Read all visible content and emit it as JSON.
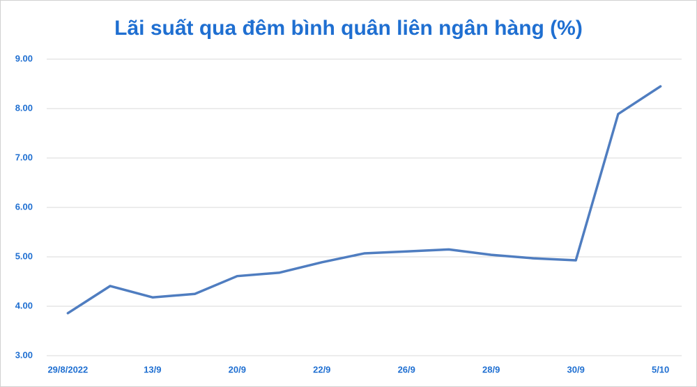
{
  "chart_data": {
    "type": "line",
    "title": "Lãi suất qua đêm bình quân liên ngân hàng (%)",
    "categories": [
      "29/8/2022",
      null,
      "13/9",
      null,
      "20/9",
      null,
      "22/9",
      null,
      "26/9",
      null,
      "28/9",
      null,
      "30/9",
      null,
      "5/10"
    ],
    "series": [
      {
        "name": "Lãi suất",
        "color": "#4f7dc0",
        "values": [
          3.86,
          4.41,
          4.18,
          4.25,
          4.61,
          4.68,
          4.89,
          5.07,
          5.11,
          5.15,
          5.04,
          4.97,
          4.93,
          7.89,
          8.45
        ]
      }
    ],
    "ylim": [
      3,
      9
    ],
    "yticks": [
      {
        "value": 3,
        "label": "3.00"
      },
      {
        "value": 4,
        "label": "4.00"
      },
      {
        "value": 5,
        "label": "5.00"
      },
      {
        "value": 6,
        "label": "6.00"
      },
      {
        "value": 7,
        "label": "7.00"
      },
      {
        "value": 8,
        "label": "8.00"
      },
      {
        "value": 9,
        "label": "9.00"
      }
    ],
    "grid": true
  }
}
